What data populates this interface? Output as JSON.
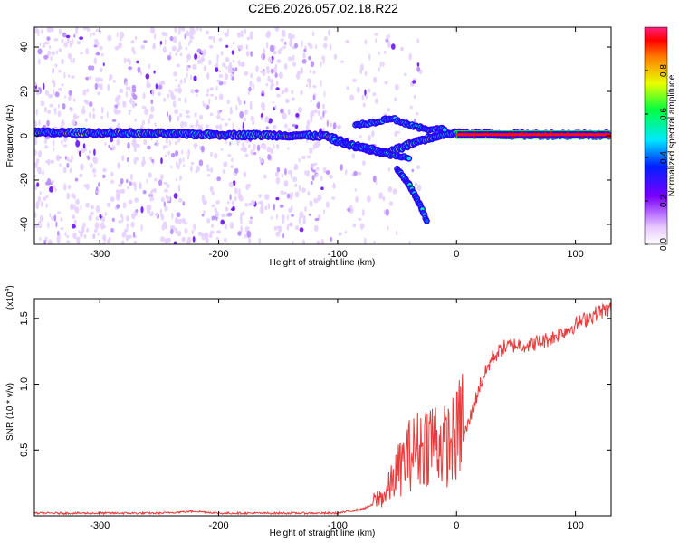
{
  "title": "C2E6.2026.057.02.18.R22",
  "chart_data": [
    {
      "type": "heatmap",
      "xlabel": "Height of straight line (km)",
      "ylabel": "Frequency (Hz)",
      "xlim": [
        -355,
        130
      ],
      "ylim": [
        -49,
        49
      ],
      "xticks": [
        -300,
        -200,
        -100,
        0,
        100
      ],
      "yticks": [
        -40,
        -20,
        0,
        20,
        40
      ],
      "colorbar": {
        "label": "Normalized spectral amplitude",
        "range": [
          0,
          1
        ],
        "ticks": [
          0.0,
          0.2,
          0.4,
          0.6,
          0.8
        ]
      },
      "ridges": [
        {
          "name": "main",
          "points": [
            [
              -355,
              1.5
            ],
            [
              -250,
              1.0
            ],
            [
              -200,
              0.5
            ],
            [
              -150,
              0.2
            ],
            [
              -110,
              0.0
            ],
            [
              -90,
              -4
            ],
            [
              -75,
              -6
            ],
            [
              -60,
              -8
            ],
            [
              -45,
              -5
            ],
            [
              -30,
              -2
            ],
            [
              -10,
              1
            ],
            [
              0,
              1
            ],
            [
              50,
              0.5
            ],
            [
              128,
              0.5
            ]
          ]
        },
        {
          "name": "upper-branch",
          "points": [
            [
              -85,
              5
            ],
            [
              -70,
              6
            ],
            [
              -55,
              8
            ],
            [
              -45,
              6
            ],
            [
              -35,
              4
            ],
            [
              -25,
              3
            ],
            [
              -10,
              3
            ]
          ]
        },
        {
          "name": "lower-branch",
          "points": [
            [
              -105,
              -2
            ],
            [
              -90,
              -4
            ],
            [
              -70,
              -6
            ],
            [
              -55,
              -9
            ],
            [
              -40,
              -10
            ]
          ]
        },
        {
          "name": "tail",
          "points": [
            [
              -50,
              -15
            ],
            [
              -40,
              -22
            ],
            [
              -32,
              -30
            ],
            [
              -25,
              -38
            ]
          ]
        }
      ]
    },
    {
      "type": "line",
      "xlabel": "Height of straight line (km)",
      "ylabel": "SNR (10 * v/v)",
      "yscale_label": "(x10^4)",
      "xlim": [
        -355,
        130
      ],
      "ylim": [
        0,
        1.65
      ],
      "xticks": [
        -300,
        -200,
        -100,
        0,
        100
      ],
      "yticks": [
        0.5,
        1.0,
        1.5
      ],
      "series": [
        {
          "color": "#e83b3b",
          "points": [
            [
              -355,
              0.02
            ],
            [
              -250,
              0.02
            ],
            [
              -220,
              0.035
            ],
            [
              -200,
              0.02
            ],
            [
              -150,
              0.02
            ],
            [
              -100,
              0.02
            ],
            [
              -80,
              0.05
            ],
            [
              -60,
              0.12
            ],
            [
              -50,
              0.25
            ],
            [
              -40,
              0.35
            ],
            [
              -30,
              0.4
            ],
            [
              -20,
              0.45
            ],
            [
              -10,
              0.4
            ],
            [
              0,
              0.45
            ],
            [
              10,
              0.7
            ],
            [
              20,
              1.0
            ],
            [
              30,
              1.2
            ],
            [
              40,
              1.28
            ],
            [
              50,
              1.3
            ],
            [
              60,
              1.3
            ],
            [
              70,
              1.32
            ],
            [
              80,
              1.35
            ],
            [
              90,
              1.4
            ],
            [
              100,
              1.45
            ],
            [
              110,
              1.5
            ],
            [
              120,
              1.55
            ],
            [
              128,
              1.57
            ]
          ]
        }
      ]
    }
  ]
}
